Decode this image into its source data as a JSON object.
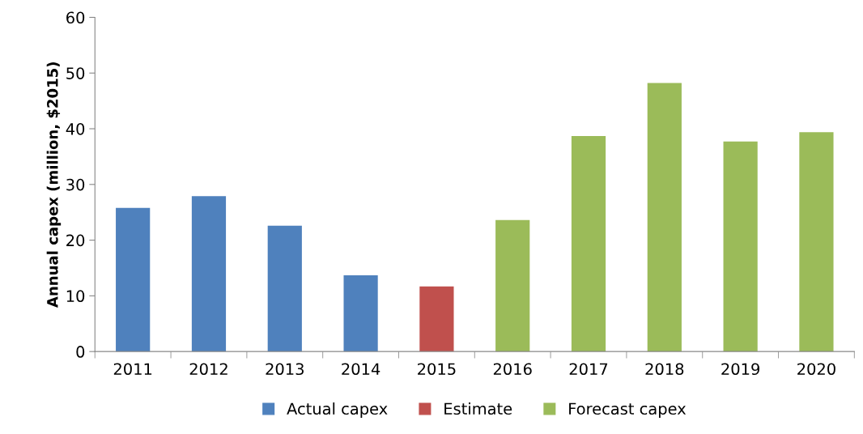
{
  "chart_data": {
    "type": "bar",
    "ylabel": "Annual capex (million, $2015)",
    "categories": [
      "2011",
      "2012",
      "2013",
      "2014",
      "2015",
      "2016",
      "2017",
      "2018",
      "2019",
      "2020"
    ],
    "series": [
      {
        "name": "Actual capex",
        "color": "#4f81bd",
        "values": [
          25.8,
          27.9,
          22.6,
          13.7,
          null,
          null,
          null,
          null,
          null,
          null
        ]
      },
      {
        "name": "Estimate",
        "color": "#c0504d",
        "values": [
          null,
          null,
          null,
          null,
          11.7,
          null,
          null,
          null,
          null,
          null
        ]
      },
      {
        "name": "Forecast capex",
        "color": "#9bbb59",
        "values": [
          null,
          null,
          null,
          null,
          null,
          23.6,
          38.7,
          48.2,
          37.7,
          39.4
        ]
      }
    ],
    "ylim": [
      0,
      60
    ],
    "yticks": [
      0,
      10,
      20,
      30,
      40,
      50,
      60
    ],
    "grid": false,
    "legend": "bottom"
  }
}
